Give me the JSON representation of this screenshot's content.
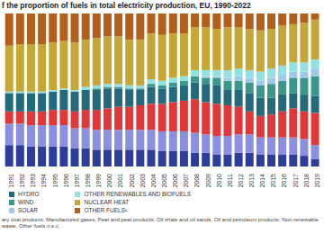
{
  "chart_data": {
    "type": "bar",
    "title": "f the proportion of fuels in total electricity production, EU, 1990-2022",
    "footnote": "ary coal products, Manufactured gases, Peat and peat products, Oil shale and oil sands, Oil and petroleum products, Non-renewable waste, Other fuels n.e.c.",
    "categories": [
      "1991",
      "1992",
      "1993",
      "1994",
      "1995",
      "1996",
      "1997",
      "1998",
      "1999",
      "2000",
      "2001",
      "2002",
      "2003",
      "2004",
      "2005",
      "2006",
      "2007",
      "2008",
      "2009",
      "2010",
      "2011",
      "2012",
      "2013",
      "2014",
      "2015",
      "2016",
      "2017",
      "2018",
      "2019"
    ],
    "series": [
      {
        "name": null,
        "color": "#2e3c9a",
        "values": [
          14,
          14,
          13,
          13,
          13,
          13,
          12,
          12,
          11,
          11,
          11,
          11,
          11,
          11,
          10,
          10,
          10,
          9,
          9,
          8,
          8,
          9,
          9,
          8,
          8,
          8,
          8,
          7,
          5
        ]
      },
      {
        "name": null,
        "color": "#8b8fe0",
        "values": [
          14,
          14,
          14,
          14,
          14,
          14,
          13,
          13,
          13,
          13,
          13,
          13,
          13,
          13,
          13,
          13,
          13,
          13,
          12,
          12,
          12,
          12,
          12,
          11,
          11,
          11,
          11,
          11,
          9
        ]
      },
      {
        "name": null,
        "color": "#e03838",
        "values": [
          8,
          8,
          9,
          9,
          10,
          10,
          11,
          12,
          13,
          14,
          15,
          15,
          16,
          17,
          18,
          19,
          20,
          22,
          21,
          21,
          20,
          18,
          15,
          14,
          15,
          17,
          19,
          18,
          21
        ]
      },
      {
        "name": "HYDRO",
        "color": "#246a7c",
        "values": [
          12,
          12,
          12,
          12,
          12,
          13,
          13,
          13,
          13,
          13,
          12,
          11,
          10,
          11,
          10,
          10,
          10,
          11,
          12,
          12,
          10,
          11,
          12,
          12,
          11,
          11,
          10,
          11,
          11
        ]
      },
      {
        "name": "WIND",
        "color": "#3a978c",
        "values": [
          0,
          0,
          0,
          0,
          0,
          0,
          0,
          0,
          1,
          1,
          1,
          1,
          1,
          2,
          2,
          3,
          3,
          4,
          4,
          5,
          6,
          6,
          7,
          8,
          9,
          9,
          10,
          11,
          13
        ]
      },
      {
        "name": "SOLAR",
        "color": "#9fc9ec",
        "values": [
          0,
          0,
          0,
          0,
          0,
          0,
          0,
          0,
          0,
          0,
          0,
          0,
          0,
          0,
          0,
          0,
          0,
          0,
          1,
          1,
          2,
          3,
          3,
          3,
          4,
          4,
          4,
          4,
          5
        ]
      },
      {
        "name": "OTHER RENEWABLES AND BIOFUELS",
        "color": "#8fe2df",
        "values": [
          1,
          1,
          1,
          1,
          1,
          1,
          1,
          2,
          2,
          2,
          2,
          2,
          2,
          3,
          3,
          3,
          3,
          4,
          4,
          4,
          5,
          5,
          5,
          6,
          6,
          6,
          6,
          6,
          6
        ]
      },
      {
        "name": "NUCLEAR HEAT",
        "color": "#c6a637",
        "values": [
          30,
          31,
          31,
          31,
          31,
          31,
          31,
          31,
          31,
          31,
          31,
          30,
          30,
          30,
          30,
          29,
          28,
          28,
          28,
          27,
          28,
          27,
          27,
          27,
          26,
          26,
          25,
          26,
          26
        ]
      },
      {
        "name": "OTHER FUELS¹",
        "color": "#b35f1c",
        "values": [
          21,
          20,
          20,
          20,
          19,
          18,
          19,
          17,
          16,
          15,
          15,
          17,
          17,
          13,
          14,
          13,
          13,
          9,
          9,
          10,
          9,
          9,
          10,
          11,
          10,
          8,
          7,
          6,
          4
        ]
      }
    ],
    "ylim": [
      0,
      100
    ],
    "stacked": true,
    "tick_labels": "x",
    "legend": "bottom"
  }
}
